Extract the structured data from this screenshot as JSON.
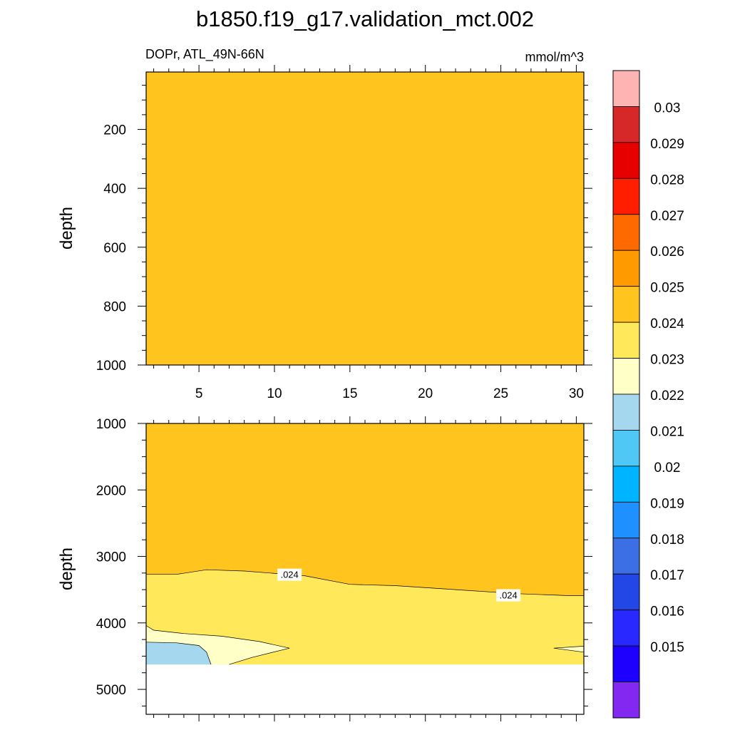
{
  "title": "b1850.f19_g17.validation_mct.002",
  "subtitle_left": "DOPr, ATL_49N-66N",
  "subtitle_right": "mmol/m^3",
  "colors": {
    "background": "#ffffff",
    "no_data": "#ffffff",
    "outline": "#000000"
  },
  "colorbar": {
    "labels": [
      "0.03",
      "0.029",
      "0.028",
      "0.027",
      "0.026",
      "0.025",
      "0.024",
      "0.023",
      "0.022",
      "0.021",
      "0.02",
      "0.019",
      "0.018",
      "0.017",
      "0.016",
      "0.015"
    ],
    "colors_top_to_bottom": [
      "#ffb4b4",
      "#d62828",
      "#e60000",
      "#ff1e00",
      "#ff6a00",
      "#ff9a00",
      "#ffc41e",
      "#ffe95a",
      "#ffffc8",
      "#a5d8ee",
      "#50c8f5",
      "#00b4ff",
      "#1e90ff",
      "#3c6ee6",
      "#2346e6",
      "#2828ff",
      "#1e00ff",
      "#8228f0"
    ]
  },
  "chart_data": [
    {
      "type": "contour",
      "panel": "upper",
      "xlabel": "",
      "ylabel": "depth",
      "xlim": [
        1.5,
        30.5
      ],
      "ylim": [
        1000,
        5
      ],
      "x_ticks": [
        5,
        10,
        15,
        20,
        25,
        30
      ],
      "x_tick_labels": [
        "5",
        "10",
        "15",
        "20",
        "25",
        "30"
      ],
      "y_ticks": [
        200,
        400,
        600,
        800,
        1000
      ],
      "y_tick_labels": [
        "200",
        "400",
        "600",
        "800",
        "1000"
      ],
      "regions": [
        {
          "band": "0.024-0.025",
          "color": "#ffc41e",
          "x": [
            1.5,
            30.5,
            30.5,
            1.5
          ],
          "y": [
            5,
            5,
            1000,
            1000
          ]
        }
      ],
      "contour_labels": []
    },
    {
      "type": "contour",
      "panel": "lower",
      "xlabel": "",
      "ylabel": "depth",
      "xlim": [
        1.5,
        30.5
      ],
      "ylim": [
        5375,
        1000
      ],
      "x_ticks": [
        5,
        10,
        15,
        20,
        25,
        30
      ],
      "y_ticks": [
        1000,
        2000,
        3000,
        4000,
        5000
      ],
      "y_tick_labels": [
        "1000",
        "2000",
        "3000",
        "4000",
        "5000"
      ],
      "data_bottom": 4625,
      "regions": [
        {
          "band": "0.024-0.025",
          "color": "#ffc41e",
          "x": [
            1.5,
            30.5,
            30.5,
            29.5,
            26.0,
            22.0,
            18.0,
            15.0,
            12.0,
            8.0,
            5.5,
            3.5,
            1.5
          ],
          "y": [
            1000,
            1000,
            3590,
            3590,
            3560,
            3500,
            3440,
            3420,
            3290,
            3220,
            3200,
            3270,
            3270
          ]
        },
        {
          "band": "0.023-0.024",
          "color": "#ffe95a",
          "x": [
            1.5,
            3.5,
            5.5,
            8.0,
            12.0,
            15.0,
            18.0,
            22.0,
            26.0,
            29.5,
            30.5,
            30.5,
            1.5
          ],
          "y": [
            3270,
            3270,
            3200,
            3220,
            3290,
            3420,
            3440,
            3500,
            3560,
            3590,
            3590,
            4625,
            4625
          ]
        },
        {
          "band": "0.022-0.023",
          "color": "#ffffc8",
          "x": [
            1.5,
            2.0,
            4.0,
            6.5,
            9.0,
            11.0,
            8.5,
            7.0,
            5.5,
            3.0,
            1.5
          ],
          "y": [
            4040,
            4110,
            4160,
            4200,
            4280,
            4380,
            4520,
            4625,
            4625,
            4520,
            4500
          ]
        },
        {
          "band": "0.022-0.023",
          "color": "#ffffc8",
          "x": [
            28.5,
            30.5,
            30.5
          ],
          "y": [
            4380,
            4350,
            4440
          ]
        },
        {
          "band": "0.021-0.022",
          "color": "#a5d8ee",
          "x": [
            1.5,
            3.5,
            5.0,
            5.5,
            5.8,
            1.5
          ],
          "y": [
            4290,
            4300,
            4340,
            4440,
            4625,
            4625
          ]
        }
      ],
      "contour_lines": [
        {
          "level": 0.024,
          "x": [
            1.5,
            3.5,
            5.5,
            8.0,
            12.0,
            15.0,
            18.0,
            22.0,
            26.0,
            29.5,
            30.5
          ],
          "y": [
            3270,
            3270,
            3200,
            3220,
            3290,
            3420,
            3440,
            3500,
            3560,
            3590,
            3590
          ]
        },
        {
          "level": 0.023,
          "x": [
            1.5,
            2.0,
            4.0,
            6.5,
            9.0,
            11.0,
            8.5,
            7.0
          ],
          "y": [
            4040,
            4110,
            4160,
            4200,
            4280,
            4380,
            4520,
            4625
          ]
        },
        {
          "level": 0.023,
          "x": [
            30.5,
            28.5,
            30.5
          ],
          "y": [
            4350,
            4380,
            4440
          ]
        },
        {
          "level": 0.022,
          "x": [
            1.5,
            3.5,
            5.0,
            5.5,
            5.8
          ],
          "y": [
            4290,
            4300,
            4340,
            4440,
            4625
          ]
        }
      ],
      "contour_labels": [
        {
          "text": ".024",
          "x": 11.0,
          "y": 3280
        },
        {
          "text": ".024",
          "x": 25.5,
          "y": 3590
        }
      ]
    }
  ]
}
